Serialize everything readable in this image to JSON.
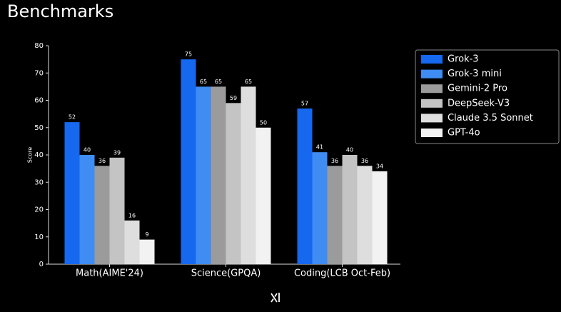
{
  "chart_data": {
    "type": "bar",
    "title": "Benchmarks",
    "ylabel": "Score",
    "categories": [
      "Math(AIME'24)",
      "Science(GPQA)",
      "Coding(LCB Oct-Feb)"
    ],
    "series": [
      {
        "name": "Grok-3",
        "color": "#1668ef",
        "values": [
          52,
          75,
          57
        ]
      },
      {
        "name": "Grok-3 mini",
        "color": "#3f8cf3",
        "values": [
          40,
          65,
          41
        ]
      },
      {
        "name": "Gemini-2 Pro",
        "color": "#9b9b9b",
        "values": [
          36,
          65,
          36
        ]
      },
      {
        "name": "DeepSeek-V3",
        "color": "#c4c4c4",
        "values": [
          39,
          59,
          40
        ]
      },
      {
        "name": "Claude 3.5 Sonnet",
        "color": "#dedede",
        "values": [
          16,
          65,
          36
        ]
      },
      {
        "name": "GPT-4o",
        "color": "#f2f2f2",
        "values": [
          9,
          50,
          34
        ]
      }
    ],
    "ylim": [
      0,
      80
    ],
    "yticks": [
      0,
      10,
      20,
      30,
      40,
      50,
      60,
      70,
      80
    ]
  }
}
